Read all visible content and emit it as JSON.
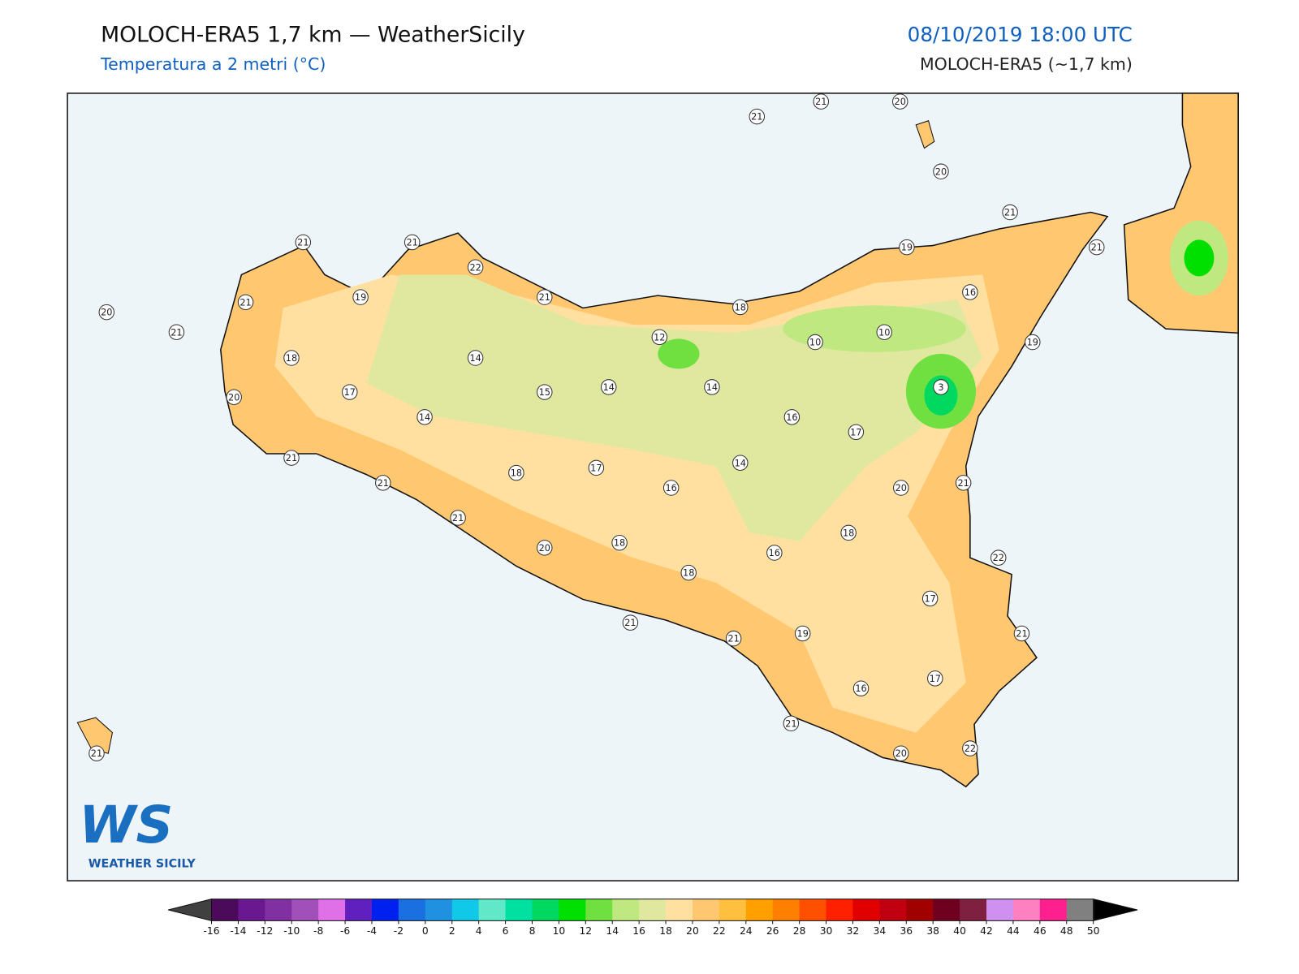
{
  "header": {
    "title": "MOLOCH-ERA5 1,7 km — WeatherSicily",
    "subtitle": "Temperatura a 2 metri (°C)",
    "datetime": "08/10/2019 18:00 UTC",
    "model": "MOLOCH-ERA5 (~1,7 km)"
  },
  "stations": [
    21,
    21,
    20,
    20,
    21,
    21,
    19,
    16,
    19,
    10,
    10,
    18,
    12,
    14,
    14,
    15,
    14,
    21,
    22,
    21,
    21,
    19,
    21,
    20,
    21,
    18,
    17,
    20,
    14,
    21,
    21,
    18,
    17,
    16,
    14,
    16,
    17,
    3,
    20,
    21,
    18,
    16,
    21,
    20,
    18,
    18,
    22,
    17,
    21,
    19,
    21,
    21,
    17,
    16,
    21,
    20,
    22,
    21
  ],
  "legend": {
    "ticks": [
      -16,
      -14,
      -12,
      -10,
      -8,
      -6,
      -4,
      -2,
      0,
      2,
      4,
      6,
      8,
      10,
      12,
      14,
      16,
      18,
      20,
      22,
      24,
      26,
      28,
      30,
      32,
      34,
      36,
      38,
      40,
      42,
      44,
      46,
      48,
      50
    ],
    "colors": [
      "#4b0a5a",
      "#6a1890",
      "#8030a0",
      "#a050b8",
      "#e070e8",
      "#6020c0",
      "#0020f0",
      "#1a70e0",
      "#2090e0",
      "#10c8e8",
      "#60e8c8",
      "#00e0a0",
      "#00d860",
      "#00e000",
      "#70e040",
      "#c0e880",
      "#e0e8a0",
      "#ffe0a0",
      "#ffc870",
      "#ffc040",
      "#ffa000",
      "#ff8000",
      "#ff5000",
      "#ff2000",
      "#e00000",
      "#c00010",
      "#a00000",
      "#700020",
      "#802040",
      "#d090f0",
      "#ff80c0",
      "#ff2090",
      "#808080"
    ],
    "under_color": "#404040",
    "over_color": "#000000"
  },
  "logo": {
    "mark": "WS",
    "name": "WEATHER SICILY"
  }
}
